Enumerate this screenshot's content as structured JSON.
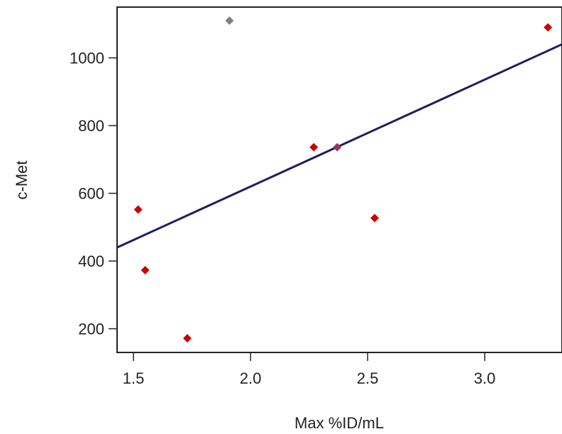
{
  "chart_data": {
    "type": "scatter",
    "xlabel": "Max %ID/mL",
    "ylabel": "c-Met",
    "xlim": [
      1.43,
      3.33
    ],
    "ylim": [
      130,
      1150
    ],
    "xticks": [
      1.5,
      2.0,
      2.5,
      3.0
    ],
    "xtick_labels": [
      "1.5",
      "2.0",
      "2.5",
      "3.0"
    ],
    "yticks": [
      200,
      400,
      600,
      800,
      1000
    ],
    "ytick_labels": [
      "200",
      "400",
      "600",
      "800",
      "1000"
    ],
    "points": [
      {
        "x": 1.52,
        "y": 552,
        "color": "#cc0000"
      },
      {
        "x": 1.55,
        "y": 373,
        "color": "#cc0000"
      },
      {
        "x": 1.73,
        "y": 172,
        "color": "#cc0000"
      },
      {
        "x": 1.91,
        "y": 1110,
        "color": "#808080"
      },
      {
        "x": 2.27,
        "y": 736,
        "color": "#cc0000"
      },
      {
        "x": 2.37,
        "y": 736,
        "color": "#993366"
      },
      {
        "x": 2.53,
        "y": 527,
        "color": "#cc0000"
      },
      {
        "x": 3.27,
        "y": 1090,
        "color": "#cc0000"
      }
    ],
    "fit_line": {
      "x": [
        1.43,
        3.33
      ],
      "y": [
        440,
        1040
      ],
      "color": "#1f1f5f"
    },
    "grid": false,
    "colors": {
      "axis": "#222222",
      "frame": "#222222"
    }
  }
}
